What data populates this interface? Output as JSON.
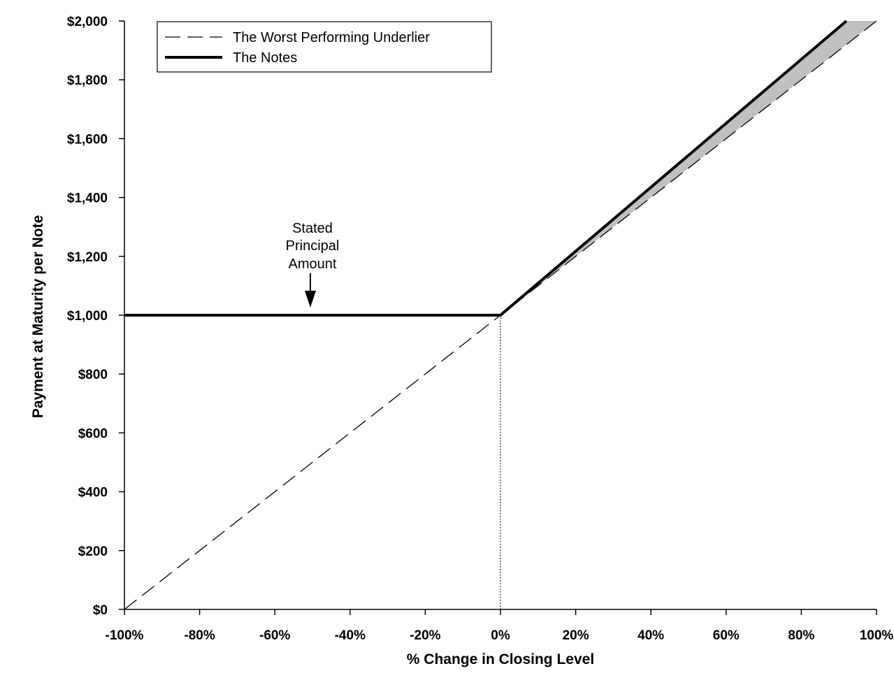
{
  "chart_data": {
    "type": "line",
    "xlabel": "% Change in Closing Level",
    "ylabel": "Payment at Maturity per Note",
    "xlim": [
      -100,
      100
    ],
    "ylim": [
      0,
      2000
    ],
    "x_ticks": [
      -100,
      -80,
      -60,
      -40,
      -20,
      0,
      20,
      40,
      60,
      80,
      100
    ],
    "x_tick_labels": [
      "-100%",
      "-80%",
      "-60%",
      "-40%",
      "-20%",
      "0%",
      "20%",
      "40%",
      "60%",
      "80%",
      "100%"
    ],
    "y_ticks": [
      0,
      200,
      400,
      600,
      800,
      1000,
      1200,
      1400,
      1600,
      1800,
      2000
    ],
    "y_tick_labels": [
      "$0",
      "$200",
      "$400",
      "$600",
      "$800",
      "$1,000",
      "$1,200",
      "$1,400",
      "$1,600",
      "$1,800",
      "$2,000"
    ],
    "grid": false,
    "legend_position": "top-left",
    "series": [
      {
        "name": "The Worst Performing Underlier",
        "style": "dashed",
        "color": "#000000",
        "x": [
          -100,
          0,
          100
        ],
        "y": [
          0,
          1000,
          2000
        ]
      },
      {
        "name": "The Notes",
        "style": "solid-thick",
        "color": "#000000",
        "x": [
          -100,
          0,
          92
        ],
        "y": [
          1000,
          1000,
          2000
        ]
      }
    ],
    "shaded_region": {
      "color": "#c0c0c0",
      "between": [
        "The Notes",
        "The Worst Performing Underlier"
      ],
      "x_range": [
        0,
        100
      ]
    },
    "reference_line": {
      "x": 0,
      "from_y": 0,
      "to_y": 1000,
      "style": "dotted"
    },
    "annotations": [
      {
        "lines": [
          "Stated",
          "Principal",
          "Amount"
        ],
        "x": -50,
        "y": 1000,
        "arrow": "down"
      }
    ]
  }
}
